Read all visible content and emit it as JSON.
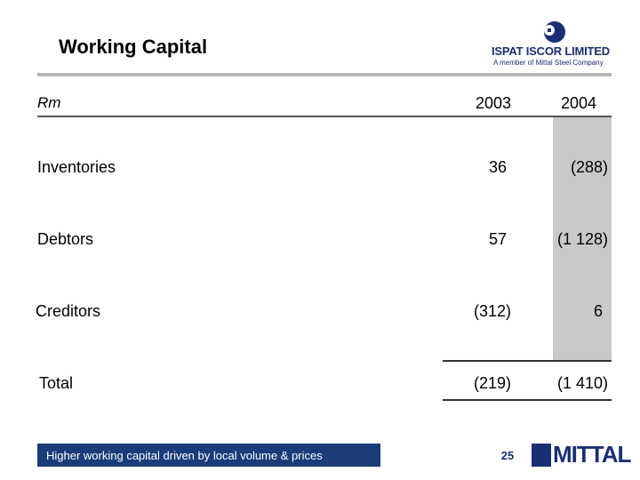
{
  "slide": {
    "title": "Working Capital",
    "page_number": "25",
    "footer_note": "Higher working capital driven by local volume & prices"
  },
  "brand": {
    "company_name": "ISPAT ISCOR LIMITED",
    "tagline": "A member of Mittal Steel Company",
    "footer_logo": "MITTAL",
    "color_primary": "#1a2f73",
    "color_footer": "#1a3c7a"
  },
  "table": {
    "unit_label": "Rm",
    "columns": [
      "2003",
      "2004"
    ],
    "rows": [
      {
        "label": "Inventories",
        "v2003": "36",
        "v2004": "(288)"
      },
      {
        "label": "Debtors",
        "v2003": "57",
        "v2004": "(1 128)"
      },
      {
        "label": "Creditors",
        "v2003": "(312)",
        "v2004": "6"
      },
      {
        "label": "Total",
        "v2003": "(219)",
        "v2004": "(1 410)"
      }
    ]
  }
}
